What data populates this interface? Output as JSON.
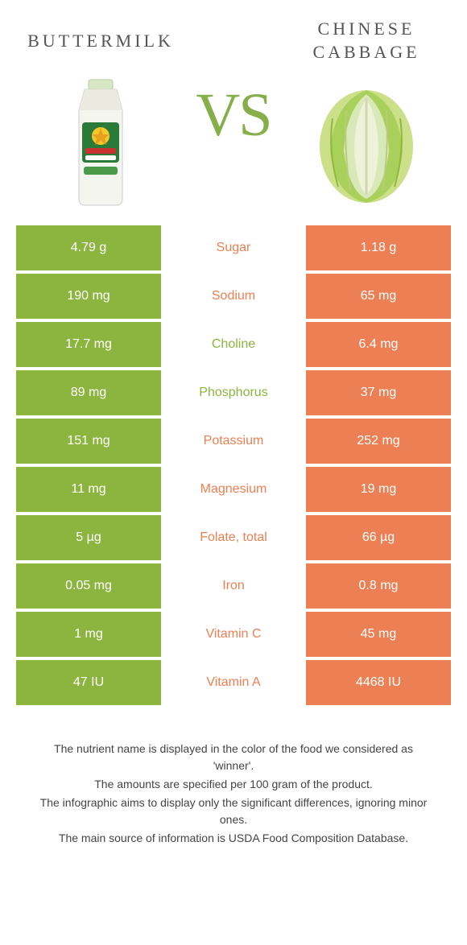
{
  "colors": {
    "left": "#8cb53f",
    "right": "#ec7f53",
    "leftText": "#8cb53f",
    "rightText": "#ec7f53"
  },
  "foodLeft": {
    "title": "BUTTERMILK"
  },
  "foodRight": {
    "title": "CHINESE CABBAGE"
  },
  "vs": "VS",
  "rows": [
    {
      "left": "4.79 g",
      "label": "Sugar",
      "right": "1.18 g",
      "winner": "right"
    },
    {
      "left": "190 mg",
      "label": "Sodium",
      "right": "65 mg",
      "winner": "right"
    },
    {
      "left": "17.7 mg",
      "label": "Choline",
      "right": "6.4 mg",
      "winner": "left"
    },
    {
      "left": "89 mg",
      "label": "Phosphorus",
      "right": "37 mg",
      "winner": "left"
    },
    {
      "left": "151 mg",
      "label": "Potassium",
      "right": "252 mg",
      "winner": "right"
    },
    {
      "left": "11 mg",
      "label": "Magnesium",
      "right": "19 mg",
      "winner": "right"
    },
    {
      "left": "5 µg",
      "label": "Folate, total",
      "right": "66 µg",
      "winner": "right"
    },
    {
      "left": "0.05 mg",
      "label": "Iron",
      "right": "0.8 mg",
      "winner": "right"
    },
    {
      "left": "1 mg",
      "label": "Vitamin C",
      "right": "45 mg",
      "winner": "right"
    },
    {
      "left": "47 IU",
      "label": "Vitamin A",
      "right": "4468 IU",
      "winner": "right"
    }
  ],
  "footer": [
    "The nutrient name is displayed in the color of the food we considered as 'winner'.",
    "The amounts are specified per 100 gram of the product.",
    "The infographic aims to display only the significant differences, ignoring minor ones.",
    "The main source of information is USDA Food Composition Database."
  ]
}
